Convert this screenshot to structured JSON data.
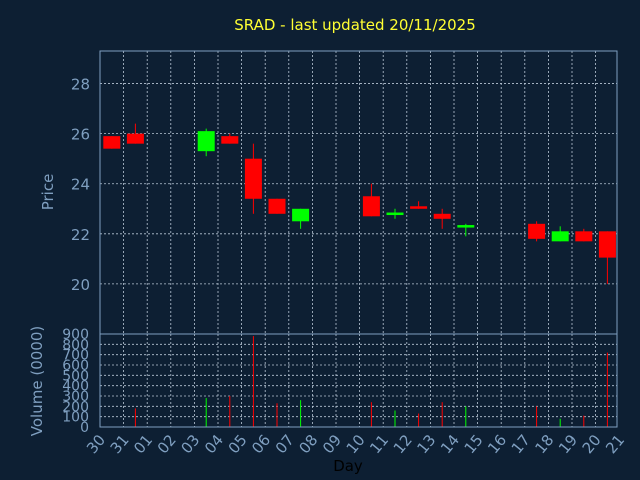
{
  "title": "SRAD - last updated 20/11/2025",
  "colors": {
    "background": "#0d1f33",
    "title": "#ffff33",
    "axis_text": "#7f9fc0",
    "up": "#00ff00",
    "down": "#ff0000",
    "grid": "#b9c7d6"
  },
  "chart_data": [
    {
      "type": "candlestick",
      "ylabel": "Price",
      "ylim": [
        18.0,
        29.3
      ],
      "yticks": [
        20,
        22,
        24,
        26,
        28
      ],
      "grid": true,
      "x_ticks": [
        "30",
        "31",
        "01",
        "02",
        "03",
        "04",
        "05",
        "06",
        "07",
        "08",
        "09",
        "10",
        "11",
        "12",
        "13",
        "14",
        "15",
        "16",
        "17",
        "18",
        "19",
        "20",
        "21"
      ],
      "candles": [
        {
          "x": "30",
          "open": 25.9,
          "high": 25.9,
          "low": 25.4,
          "close": 25.4
        },
        {
          "x": "31",
          "open": 26.0,
          "high": 26.4,
          "low": 25.6,
          "close": 25.6
        },
        {
          "x": "03",
          "open": 25.3,
          "high": 26.2,
          "low": 25.1,
          "close": 26.1
        },
        {
          "x": "04",
          "open": 25.9,
          "high": 26.0,
          "low": 25.6,
          "close": 25.6
        },
        {
          "x": "05",
          "open": 25.0,
          "high": 25.6,
          "low": 22.8,
          "close": 23.4
        },
        {
          "x": "06",
          "open": 23.4,
          "high": 23.4,
          "low": 22.8,
          "close": 22.8
        },
        {
          "x": "07",
          "open": 22.5,
          "high": 23.0,
          "low": 22.2,
          "close": 23.0
        },
        {
          "x": "10",
          "open": 23.5,
          "high": 24.0,
          "low": 22.7,
          "close": 22.7
        },
        {
          "x": "11",
          "open": 22.75,
          "high": 23.0,
          "low": 22.6,
          "close": 22.85
        },
        {
          "x": "12",
          "open": 23.1,
          "high": 23.3,
          "low": 23.0,
          "close": 23.0
        },
        {
          "x": "13",
          "open": 22.8,
          "high": 23.0,
          "low": 22.2,
          "close": 22.6
        },
        {
          "x": "14",
          "open": 22.25,
          "high": 22.4,
          "low": 21.9,
          "close": 22.35
        },
        {
          "x": "17",
          "open": 22.4,
          "high": 22.5,
          "low": 21.7,
          "close": 21.8
        },
        {
          "x": "18",
          "open": 21.7,
          "high": 22.3,
          "low": 21.7,
          "close": 22.1
        },
        {
          "x": "19",
          "open": 22.1,
          "high": 22.2,
          "low": 21.7,
          "close": 21.7
        },
        {
          "x": "20",
          "open": 22.1,
          "high": 22.1,
          "low": 20.0,
          "close": 21.05
        }
      ]
    },
    {
      "type": "bar",
      "ylabel": "Volume (0000)",
      "xlabel": "Day",
      "ylim": [
        0,
        900
      ],
      "yticks": [
        0,
        100,
        200,
        300,
        400,
        500,
        600,
        700,
        800,
        900
      ],
      "grid": true,
      "bars": [
        {
          "x": "31",
          "value": 180,
          "color": "down"
        },
        {
          "x": "03",
          "value": 280,
          "color": "up"
        },
        {
          "x": "04",
          "value": 300,
          "color": "down"
        },
        {
          "x": "05",
          "value": 880,
          "color": "down"
        },
        {
          "x": "06",
          "value": 230,
          "color": "down"
        },
        {
          "x": "07",
          "value": 260,
          "color": "up"
        },
        {
          "x": "10",
          "value": 240,
          "color": "down"
        },
        {
          "x": "11",
          "value": 160,
          "color": "up"
        },
        {
          "x": "12",
          "value": 130,
          "color": "down"
        },
        {
          "x": "13",
          "value": 240,
          "color": "down"
        },
        {
          "x": "14",
          "value": 200,
          "color": "up"
        },
        {
          "x": "17",
          "value": 200,
          "color": "down"
        },
        {
          "x": "18",
          "value": 80,
          "color": "up"
        },
        {
          "x": "19",
          "value": 110,
          "color": "down"
        },
        {
          "x": "20",
          "value": 720,
          "color": "down"
        }
      ]
    }
  ]
}
